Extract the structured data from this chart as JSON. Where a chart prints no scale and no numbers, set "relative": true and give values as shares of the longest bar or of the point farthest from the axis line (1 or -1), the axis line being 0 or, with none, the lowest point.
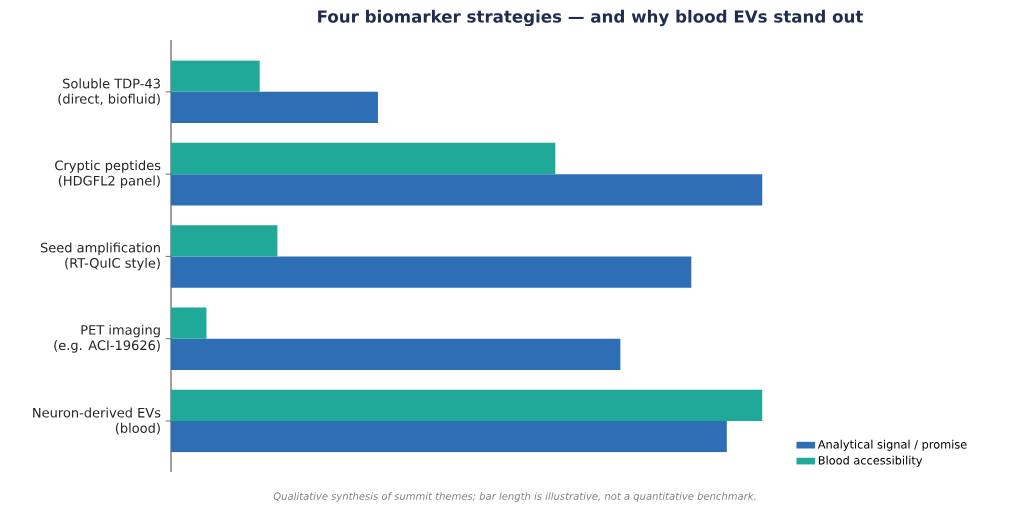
{
  "chart_data": {
    "type": "bar",
    "orientation": "horizontal",
    "relative": true,
    "title": "Four biomarker strategies — and why blood EVs stand out",
    "categories": [
      "Soluble TDP-43\n(direct, biofluid)",
      "Cryptic peptides\n(HDGFL2 panel)",
      "Seed amplification\n(RT-QuIC style)",
      "PET imaging\n(e.g. ACI-19626)",
      "Neuron-derived EVs\n(blood)"
    ],
    "series": [
      {
        "name": "Analytical signal / promise",
        "color": "#2e6eb5",
        "values": [
          0.35,
          1,
          0.88,
          0.76,
          0.94
        ]
      },
      {
        "name": "Blood accessibility",
        "color": "#20a898",
        "values": [
          0.15,
          0.65,
          0.18,
          0.06,
          1
        ]
      }
    ],
    "legend": "bottom right",
    "annotations": [
      "Qualitative synthesis of summit themes; bar length is illustrative, not a quantitative benchmark."
    ]
  }
}
